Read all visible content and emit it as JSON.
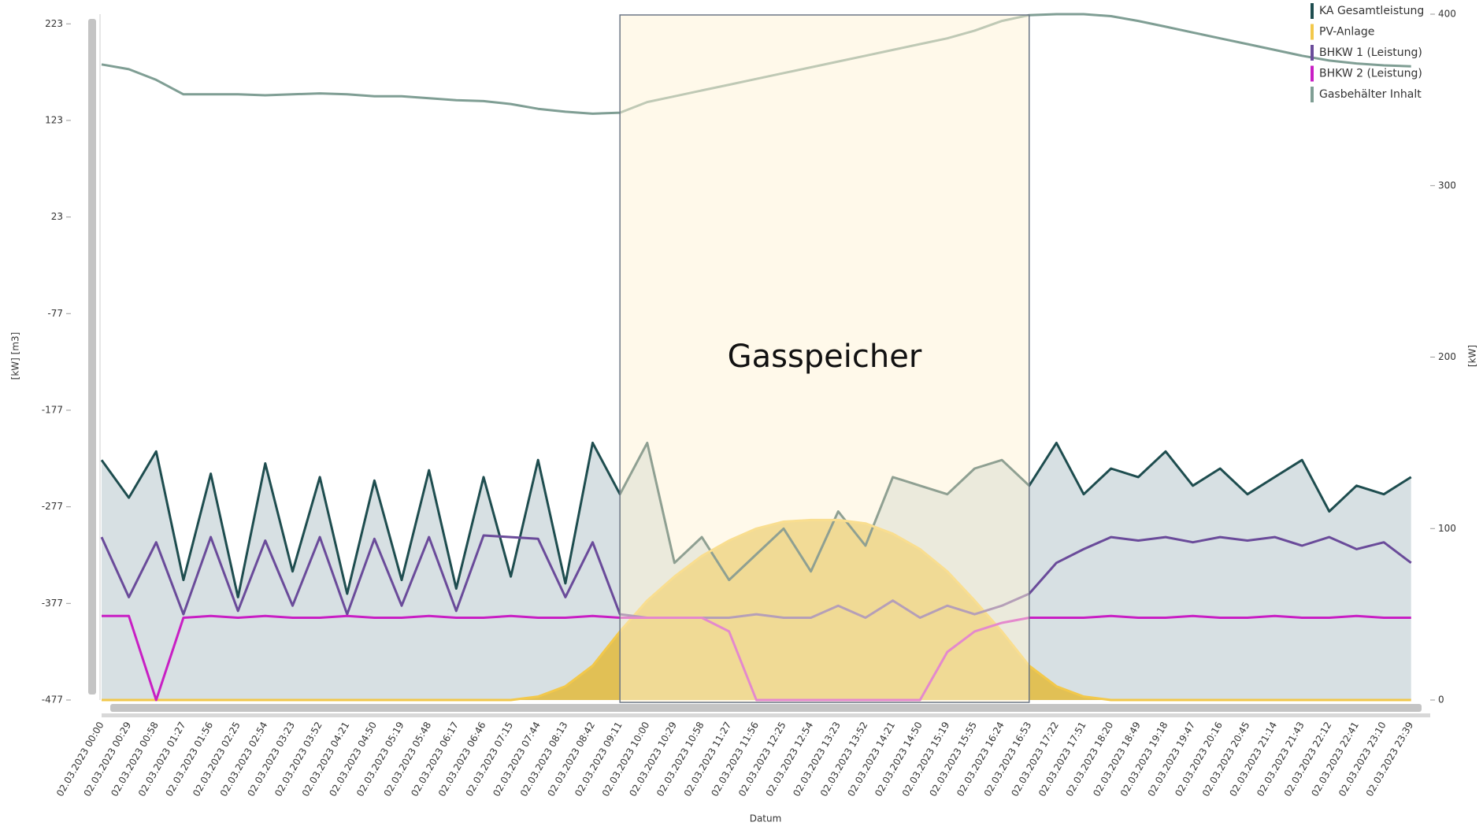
{
  "chart_data": {
    "type": "line",
    "y_label": "[kW]  [m3]",
    "y2_label": "[kW]",
    "x_label": "Datum",
    "categories": [
      "02.03.2023 00:00",
      "02.03.2023 00:29",
      "02.03.2023 00:58",
      "02.03.2023 01:27",
      "02.03.2023 01:56",
      "02.03.2023 02:25",
      "02.03.2023 02:54",
      "02.03.2023 03:23",
      "02.03.2023 03:52",
      "02.03.2023 04:21",
      "02.03.2023 04:50",
      "02.03.2023 05:19",
      "02.03.2023 05:48",
      "02.03.2023 06:17",
      "02.03.2023 06:46",
      "02.03.2023 07:15",
      "02.03.2023 07:44",
      "02.03.2023 08:13",
      "02.03.2023 08:42",
      "02.03.2023 09:11",
      "02.03.2023 10:00",
      "02.03.2023 10:29",
      "02.03.2023 10:58",
      "02.03.2023 11:27",
      "02.03.2023 11:56",
      "02.03.2023 12:25",
      "02.03.2023 12:54",
      "02.03.2023 13:23",
      "02.03.2023 13:52",
      "02.03.2023 14:21",
      "02.03.2023 14:50",
      "02.03.2023 15:19",
      "02.03.2023 15:55",
      "02.03.2023 16:24",
      "02.03.2023 16:53",
      "02.03.2023 17:22",
      "02.03.2023 17:51",
      "02.03.2023 18:20",
      "02.03.2023 18:49",
      "02.03.2023 19:18",
      "02.03.2023 19:47",
      "02.03.2023 20:16",
      "02.03.2023 20:45",
      "02.03.2023 21:14",
      "02.03.2023 21:43",
      "02.03.2023 22:12",
      "02.03.2023 22:41",
      "02.03.2023 23:10",
      "02.03.2023 23:39"
    ],
    "series": [
      {
        "name": "KA Gesamtleistung",
        "color": "#1e4d4f",
        "fill": "#d3dde0",
        "axis": "y2",
        "values": [
          140,
          118,
          145,
          70,
          132,
          60,
          138,
          75,
          130,
          62,
          128,
          70,
          134,
          65,
          130,
          72,
          140,
          68,
          150,
          120,
          150,
          80,
          95,
          70,
          85,
          100,
          75,
          110,
          90,
          130,
          125,
          120,
          135,
          140,
          125,
          150,
          120,
          135,
          130,
          145,
          125,
          135,
          120,
          130,
          140,
          110,
          125,
          120,
          130
        ]
      },
      {
        "name": "PV-Anlage",
        "color": "#f2c84b",
        "fill": "#e2bd45",
        "axis": "y2",
        "values": [
          0,
          0,
          0,
          0,
          0,
          0,
          0,
          0,
          0,
          0,
          0,
          0,
          0,
          0,
          0,
          0,
          2,
          8,
          20,
          40,
          58,
          72,
          84,
          93,
          100,
          104,
          105,
          105,
          103,
          97,
          88,
          75,
          58,
          40,
          20,
          8,
          2,
          0,
          0,
          0,
          0,
          0,
          0,
          0,
          0,
          0,
          0,
          0,
          0
        ]
      },
      {
        "name": "BHKW 1 (Leistung)",
        "color": "#6a4b9a",
        "axis": "y2",
        "values": [
          95,
          60,
          92,
          50,
          95,
          52,
          93,
          55,
          95,
          50,
          94,
          55,
          95,
          52,
          96,
          95,
          94,
          60,
          92,
          50,
          48,
          48,
          48,
          48,
          50,
          48,
          48,
          55,
          48,
          58,
          48,
          55,
          50,
          55,
          62,
          80,
          88,
          95,
          93,
          95,
          92,
          95,
          93,
          95,
          90,
          95,
          88,
          92,
          80
        ]
      },
      {
        "name": "BHKW 2 (Leistung)",
        "color": "#c81fc4",
        "axis": "y2",
        "values": [
          49,
          49,
          0,
          48,
          49,
          48,
          49,
          48,
          48,
          49,
          48,
          48,
          49,
          48,
          48,
          49,
          48,
          48,
          49,
          48,
          48,
          48,
          48,
          40,
          0,
          0,
          0,
          0,
          0,
          0,
          0,
          28,
          40,
          45,
          48,
          48,
          48,
          49,
          48,
          48,
          49,
          48,
          48,
          49,
          48,
          48,
          49,
          48,
          48
        ]
      },
      {
        "name": "Gasbehälter Inhalt",
        "color": "#7f9e94",
        "axis": "y",
        "values": [
          181,
          176,
          165,
          150,
          150,
          150,
          149,
          150,
          151,
          150,
          148,
          148,
          146,
          144,
          143,
          140,
          135,
          132,
          130,
          131,
          142,
          148,
          154,
          160,
          166,
          172,
          178,
          184,
          190,
          196,
          202,
          208,
          216,
          226,
          232,
          233,
          233,
          231,
          226,
          220,
          214,
          208,
          202,
          196,
          190,
          185,
          182,
          180,
          179
        ]
      }
    ],
    "ylim": [
      -477,
      233
    ],
    "yticks": [
      -477,
      -377,
      -277,
      -177,
      -77,
      23,
      123,
      223
    ],
    "y2lim": [
      0,
      400
    ],
    "y2ticks": [
      0,
      100,
      200,
      300,
      400
    ],
    "legend": "top-right",
    "annotations": [
      {
        "text": "Gasspeicher",
        "from": "02.03.2023 09:11",
        "to": "02.03.2023 16:53",
        "color": "#fff3d6"
      }
    ]
  }
}
